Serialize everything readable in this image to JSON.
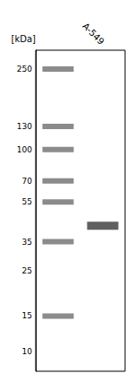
{
  "chart_data": {
    "type": "blot",
    "categories": [
      null,
      "A-549"
    ],
    "ylabel": "[kDa]",
    "log": "y",
    "ylim": [
      8,
      310
    ],
    "yticks": [
      250,
      130,
      100,
      70,
      55,
      35,
      25,
      15,
      10
    ],
    "values": [
      [
        250,
        130,
        100,
        70,
        55,
        35,
        15
      ],
      [
        42
      ]
    ],
    "colors": [
      "#777777",
      "#444444"
    ],
    "grid": false
  }
}
